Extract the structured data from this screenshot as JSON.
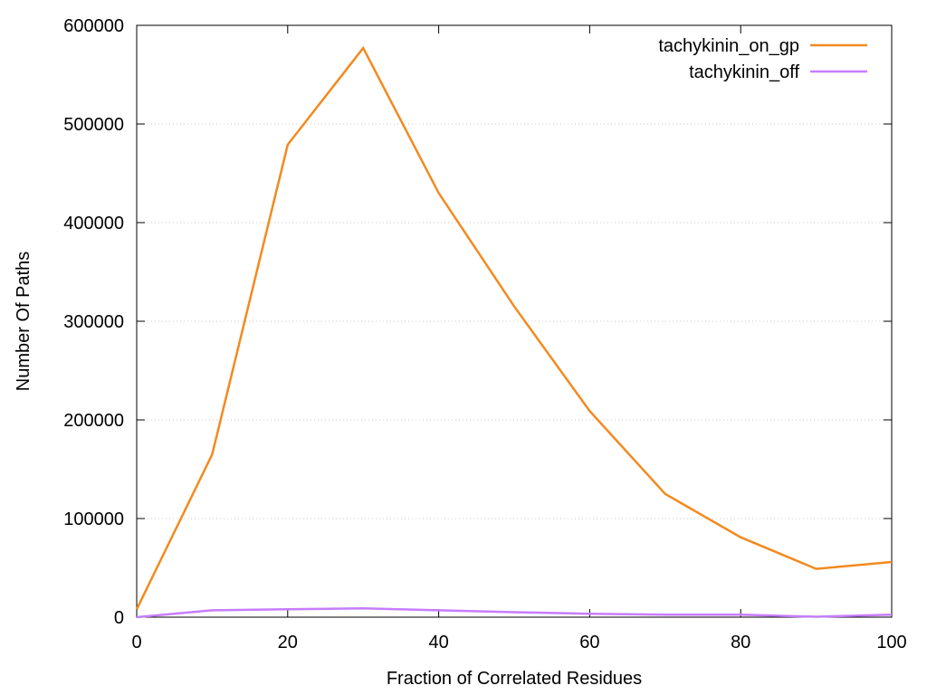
{
  "chart_data": {
    "type": "line",
    "xlabel": "Fraction of Correlated Residues",
    "ylabel": "Number Of Paths",
    "xlim": [
      0,
      100
    ],
    "ylim": [
      0,
      600000
    ],
    "xticks": [
      0,
      20,
      40,
      60,
      80,
      100
    ],
    "yticks": [
      0,
      100000,
      200000,
      300000,
      400000,
      500000,
      600000
    ],
    "grid": "horizontal-dotted",
    "legend_position": "top-right",
    "series": [
      {
        "name": "tachykinin_on_gp",
        "color": "#f28a1e",
        "x": [
          0,
          10,
          20,
          30,
          40,
          50,
          60,
          70,
          80,
          90,
          100
        ],
        "y": [
          8000,
          165000,
          479000,
          577000,
          430000,
          315000,
          209000,
          125000,
          81000,
          49000,
          56000
        ]
      },
      {
        "name": "tachykinin_off",
        "color": "#c77dff",
        "x": [
          0,
          10,
          20,
          30,
          40,
          50,
          60,
          70,
          80,
          90,
          100
        ],
        "y": [
          0,
          7000,
          8000,
          9000,
          7000,
          5000,
          3500,
          2500,
          2500,
          500,
          2500
        ]
      }
    ]
  }
}
